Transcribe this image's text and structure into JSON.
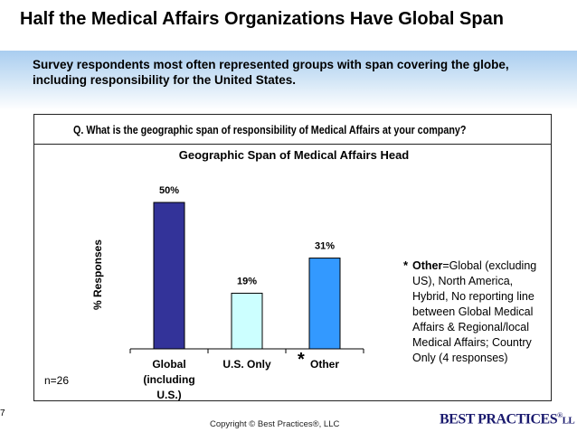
{
  "title": "Half the Medical Affairs Organizations Have Global Span",
  "banner": "Survey respondents most often represented groups with span covering the globe, including responsibility for the United States.",
  "question": "Q. What is the geographic span of responsibility of Medical Affairs at your company?",
  "footnote": {
    "star": "*",
    "label": "Other",
    "text": "=Global (excluding US), North America, Hybrid, No reporting line between Global Medical Affairs & Regional/local Medical Affairs; Country Only (4 responses)"
  },
  "other_star": "*",
  "n_count": "n=26",
  "copyright": "Copyright © Best Practices®, LLC",
  "logo": {
    "main": "BEST PRACTICES",
    "reg": "®",
    "tail": "LL"
  },
  "corner_mark": "7",
  "colors": {
    "global": "#333399",
    "us_only": "#ccffff",
    "other": "#3399ff"
  },
  "chart_data": {
    "type": "bar",
    "title": "Geographic Span of Medical Affairs Head",
    "ylabel": "% Responses",
    "xlabel": "",
    "categories": [
      "Global (including U.S.)",
      "U.S. Only",
      "Other"
    ],
    "category_lines": [
      [
        "Global",
        "(including",
        "U.S.)"
      ],
      [
        "U.S. Only"
      ],
      [
        "Other"
      ]
    ],
    "values": [
      50,
      19,
      31
    ],
    "data_labels": [
      "50%",
      "19%",
      "31%"
    ],
    "bar_colors": [
      "#333399",
      "#ccffff",
      "#3399ff"
    ],
    "ylim": [
      0,
      50
    ],
    "grid": false,
    "legend": "none"
  }
}
